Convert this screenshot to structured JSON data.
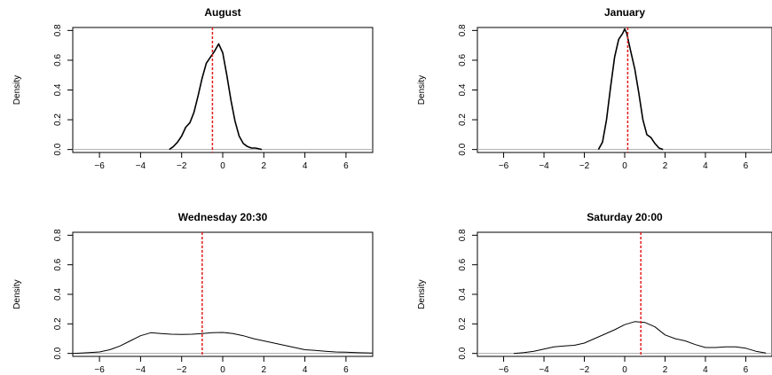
{
  "chart_data": [
    {
      "type": "line",
      "title": "August",
      "ylabel": "Density",
      "xlabel": "",
      "xlim": [
        -7.3,
        7.3
      ],
      "ylim": [
        -0.02,
        0.82
      ],
      "xticks": [
        -6,
        -4,
        -2,
        0,
        2,
        4,
        6
      ],
      "yticks": [
        0.0,
        0.2,
        0.4,
        0.6,
        0.8
      ],
      "xtick_labels": [
        "−6",
        "−4",
        "−2",
        "0",
        "2",
        "4",
        "6"
      ],
      "ytick_labels": [
        "0.0",
        "0.2",
        "0.4",
        "0.6",
        "0.8"
      ],
      "baseline": 0,
      "vline": -0.5,
      "vline_color": "#e41a1c",
      "line_color": "#000000",
      "line_width": 1.6,
      "series": [
        {
          "x": [
            -2.6,
            -2.4,
            -2.2,
            -2.0,
            -1.8,
            -1.6,
            -1.4,
            -1.2,
            -1.0,
            -0.8,
            -0.6,
            -0.4,
            -0.2,
            0.0,
            0.2,
            0.4,
            0.6,
            0.8,
            1.0,
            1.2,
            1.4,
            1.6,
            1.9
          ],
          "y": [
            0.0,
            0.02,
            0.05,
            0.09,
            0.15,
            0.18,
            0.25,
            0.36,
            0.48,
            0.58,
            0.62,
            0.66,
            0.71,
            0.65,
            0.5,
            0.33,
            0.19,
            0.09,
            0.04,
            0.02,
            0.01,
            0.01,
            0.0
          ]
        }
      ]
    },
    {
      "type": "line",
      "title": "January",
      "ylabel": "Density",
      "xlabel": "",
      "xlim": [
        -7.3,
        7.3
      ],
      "ylim": [
        -0.02,
        0.82
      ],
      "xticks": [
        -6,
        -4,
        -2,
        0,
        2,
        4,
        6
      ],
      "yticks": [
        0.0,
        0.2,
        0.4,
        0.6,
        0.8
      ],
      "xtick_labels": [
        "−6",
        "−4",
        "−2",
        "0",
        "2",
        "4",
        "6"
      ],
      "ytick_labels": [
        "0.0",
        "0.2",
        "0.4",
        "0.6",
        "0.8"
      ],
      "baseline": 0,
      "vline": 0.15,
      "vline_color": "#e41a1c",
      "line_color": "#000000",
      "line_width": 1.6,
      "series": [
        {
          "x": [
            -1.3,
            -1.1,
            -0.9,
            -0.7,
            -0.5,
            -0.3,
            -0.1,
            0.0,
            0.1,
            0.3,
            0.5,
            0.7,
            0.9,
            1.1,
            1.3,
            1.5,
            1.7,
            1.9
          ],
          "y": [
            0.0,
            0.05,
            0.2,
            0.42,
            0.62,
            0.74,
            0.78,
            0.81,
            0.78,
            0.66,
            0.54,
            0.38,
            0.2,
            0.1,
            0.08,
            0.04,
            0.01,
            0.0
          ]
        }
      ]
    },
    {
      "type": "line",
      "title": "Wednesday 20:30",
      "ylabel": "Density",
      "xlabel": "",
      "xlim": [
        -7.3,
        7.3
      ],
      "ylim": [
        -0.02,
        0.82
      ],
      "xticks": [
        -6,
        -4,
        -2,
        0,
        2,
        4,
        6
      ],
      "yticks": [
        0.0,
        0.2,
        0.4,
        0.6,
        0.8
      ],
      "xtick_labels": [
        "−6",
        "−4",
        "−2",
        "0",
        "2",
        "4",
        "6"
      ],
      "ytick_labels": [
        "0.0",
        "0.2",
        "0.4",
        "0.6",
        "0.8"
      ],
      "baseline": 0,
      "vline": -1.0,
      "vline_color": "#e41a1c",
      "line_color": "#000000",
      "line_width": 1.0,
      "series": [
        {
          "x": [
            -7.3,
            -6.5,
            -6.0,
            -5.5,
            -5.0,
            -4.5,
            -4.0,
            -3.5,
            -3.0,
            -2.5,
            -2.0,
            -1.5,
            -1.0,
            -0.5,
            0.0,
            0.5,
            1.0,
            1.5,
            2.0,
            2.5,
            3.0,
            3.5,
            4.0,
            4.5,
            5.0,
            5.5,
            6.0,
            6.5,
            7.3
          ],
          "y": [
            0.0,
            0.005,
            0.01,
            0.025,
            0.05,
            0.085,
            0.12,
            0.14,
            0.135,
            0.13,
            0.128,
            0.13,
            0.135,
            0.14,
            0.142,
            0.135,
            0.12,
            0.1,
            0.085,
            0.07,
            0.055,
            0.04,
            0.025,
            0.02,
            0.015,
            0.01,
            0.008,
            0.005,
            0.002
          ]
        }
      ]
    },
    {
      "type": "line",
      "title": "Saturday 20:00",
      "ylabel": "Density",
      "xlabel": "",
      "xlim": [
        -7.3,
        7.3
      ],
      "ylim": [
        -0.02,
        0.82
      ],
      "xticks": [
        -6,
        -4,
        -2,
        0,
        2,
        4,
        6
      ],
      "yticks": [
        0.0,
        0.2,
        0.4,
        0.6,
        0.8
      ],
      "xtick_labels": [
        "−6",
        "−4",
        "−2",
        "0",
        "2",
        "4",
        "6"
      ],
      "ytick_labels": [
        "0.0",
        "0.2",
        "0.4",
        "0.6",
        "0.8"
      ],
      "baseline": 0,
      "vline": 0.8,
      "vline_color": "#e41a1c",
      "line_color": "#000000",
      "line_width": 1.0,
      "series": [
        {
          "x": [
            -5.5,
            -5.0,
            -4.5,
            -4.0,
            -3.5,
            -3.0,
            -2.5,
            -2.0,
            -1.5,
            -1.0,
            -0.5,
            0.0,
            0.5,
            1.0,
            1.5,
            2.0,
            2.5,
            3.0,
            3.5,
            4.0,
            4.5,
            5.0,
            5.5,
            6.0,
            6.5,
            7.0
          ],
          "y": [
            0.0,
            0.005,
            0.015,
            0.03,
            0.045,
            0.05,
            0.055,
            0.07,
            0.1,
            0.13,
            0.16,
            0.195,
            0.215,
            0.21,
            0.18,
            0.125,
            0.1,
            0.085,
            0.06,
            0.04,
            0.04,
            0.045,
            0.045,
            0.035,
            0.015,
            0.003
          ]
        }
      ]
    }
  ]
}
